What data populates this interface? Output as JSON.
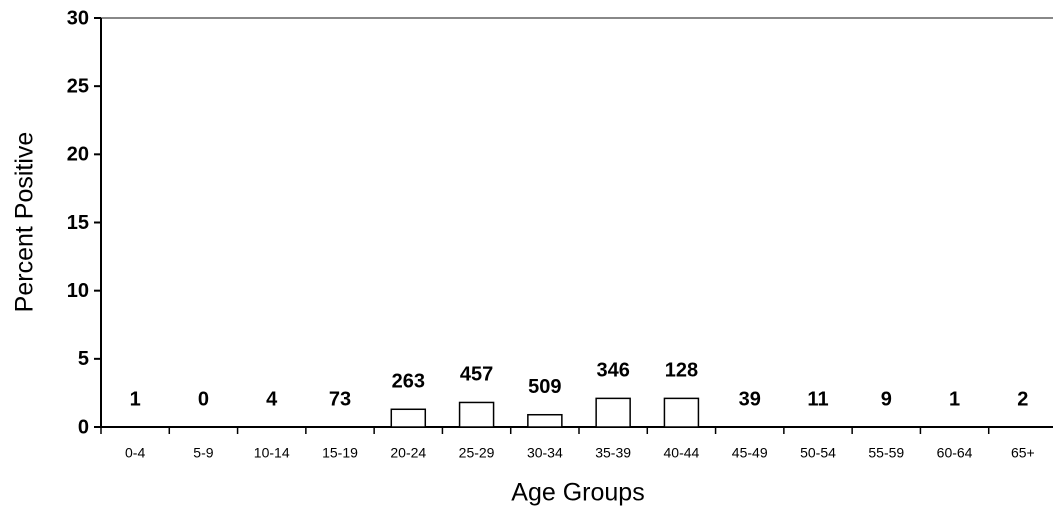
{
  "chart_data": {
    "type": "bar",
    "categories": [
      "0-4",
      "5-9",
      "10-14",
      "15-19",
      "20-24",
      "25-29",
      "30-34",
      "35-39",
      "40-44",
      "45-49",
      "50-54",
      "55-59",
      "60-64",
      "65+"
    ],
    "values": [
      0,
      0,
      0,
      0,
      1.3,
      1.8,
      0.9,
      2.1,
      2.1,
      0,
      0,
      0,
      0,
      0
    ],
    "n_labels": [
      1,
      0,
      4,
      73,
      263,
      457,
      509,
      346,
      128,
      39,
      11,
      9,
      1,
      2
    ],
    "color": "#ffffff",
    "x_label": "Age Groups",
    "y_label": "Percent Positive",
    "ylim": [
      0,
      30
    ],
    "yticks": [
      0,
      5,
      10,
      15,
      20,
      25,
      30
    ]
  }
}
